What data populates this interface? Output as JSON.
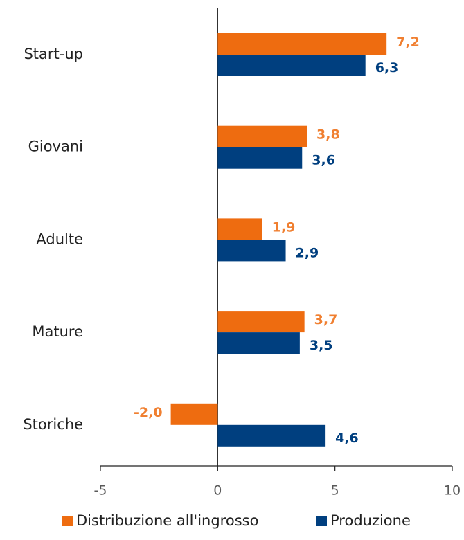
{
  "chart_data": {
    "type": "barh",
    "categories": [
      "Start-up",
      "Giovani",
      "Adulte",
      "Mature",
      "Storiche"
    ],
    "series": [
      {
        "name": "Distribuzione all'ingrosso",
        "color": "#ee6c10",
        "label_color": "#f07f30",
        "values": [
          7.2,
          3.8,
          1.9,
          3.7,
          -2.0
        ],
        "value_labels": [
          "7,2",
          "3,8",
          "1,9",
          "3,7",
          "-2,0"
        ]
      },
      {
        "name": "Produzione",
        "color": "#003f7f",
        "label_color": "#003f7f",
        "values": [
          6.3,
          3.6,
          2.9,
          3.5,
          4.6
        ],
        "value_labels": [
          "6,3",
          "3,6",
          "2,9",
          "3,5",
          "4,6"
        ]
      }
    ],
    "xlim": [
      -5,
      10
    ],
    "xticks": [
      -5,
      0,
      5,
      10
    ]
  }
}
